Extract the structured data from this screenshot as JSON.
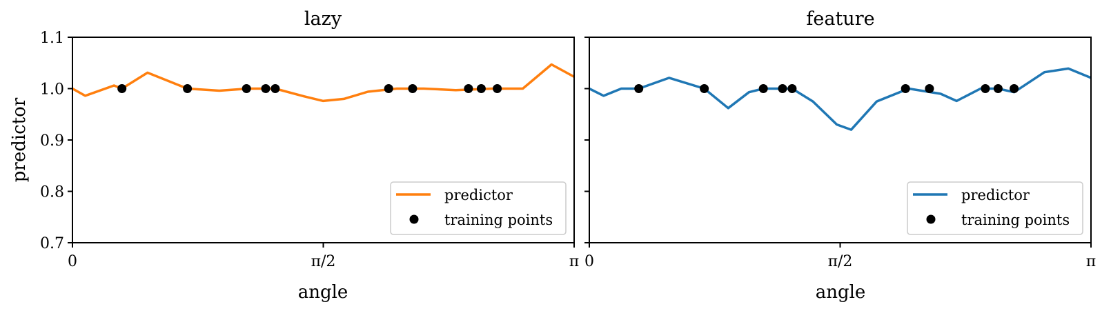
{
  "chart_data": [
    {
      "type": "line",
      "title": "lazy",
      "xlabel": "angle",
      "ylabel": "predictor",
      "xlim": [
        0,
        3.14159
      ],
      "ylim": [
        0.7,
        1.1
      ],
      "xticks": [
        0,
        1.5708,
        3.14159
      ],
      "xtick_labels": [
        "0",
        "π/2",
        "π"
      ],
      "yticks": [
        0.7,
        0.8,
        0.9,
        1.0,
        1.1
      ],
      "ytick_labels": [
        "0.7",
        "0.8",
        "0.9",
        "1.0",
        "1.1"
      ],
      "legend_position": "lower-right",
      "series": [
        {
          "name": "predictor",
          "color": "#ff7f0e",
          "x": [
            0,
            0.08,
            0.26,
            0.31,
            0.47,
            0.72,
            0.92,
            1.1,
            1.27,
            1.45,
            1.57,
            1.7,
            1.85,
            2.03,
            2.2,
            2.4,
            2.63,
            2.82,
            3.0,
            3.14159
          ],
          "y": [
            1.0,
            0.986,
            1.006,
            1.0,
            1.031,
            1.0,
            0.996,
            1.0,
            1.0,
            0.985,
            0.976,
            0.98,
            0.994,
            1.0,
            1.0,
            0.997,
            1.0,
            1.0,
            1.047,
            1.023
          ]
        },
        {
          "name": "training points",
          "color": "#000000",
          "x": [
            0.31,
            0.72,
            1.09,
            1.21,
            1.27,
            1.98,
            2.13,
            2.48,
            2.56,
            2.66
          ],
          "y": [
            1.0,
            1.0,
            1.0,
            1.0,
            1.0,
            1.0,
            1.0,
            1.0,
            1.0,
            1.0
          ]
        }
      ]
    },
    {
      "type": "line",
      "title": "feature",
      "xlabel": "angle",
      "ylabel": "",
      "xlim": [
        0,
        3.14159
      ],
      "ylim": [
        0.7,
        1.1
      ],
      "xticks": [
        0,
        1.5708,
        3.14159
      ],
      "xtick_labels": [
        "0",
        "π/2",
        "π"
      ],
      "yticks": [
        0.7,
        0.8,
        0.9,
        1.0,
        1.1
      ],
      "legend_position": "lower-right",
      "series": [
        {
          "name": "predictor",
          "color": "#1f77b4",
          "x": [
            0,
            0.09,
            0.2,
            0.31,
            0.5,
            0.72,
            0.87,
            1.0,
            1.09,
            1.27,
            1.4,
            1.55,
            1.64,
            1.8,
            2.0,
            2.2,
            2.3,
            2.45,
            2.56,
            2.66,
            2.85,
            3.0,
            3.14159
          ],
          "y": [
            1.0,
            0.986,
            1.0,
            1.0,
            1.021,
            1.0,
            0.962,
            0.993,
            1.0,
            1.0,
            0.975,
            0.93,
            0.92,
            0.975,
            1.0,
            0.99,
            0.976,
            1.0,
            1.0,
            0.993,
            1.032,
            1.039,
            1.021
          ]
        },
        {
          "name": "training points",
          "color": "#000000",
          "x": [
            0.31,
            0.72,
            1.09,
            1.21,
            1.27,
            1.98,
            2.13,
            2.48,
            2.56,
            2.66
          ],
          "y": [
            1.0,
            1.0,
            1.0,
            1.0,
            1.0,
            1.0,
            1.0,
            1.0,
            1.0,
            1.0
          ]
        }
      ]
    }
  ]
}
